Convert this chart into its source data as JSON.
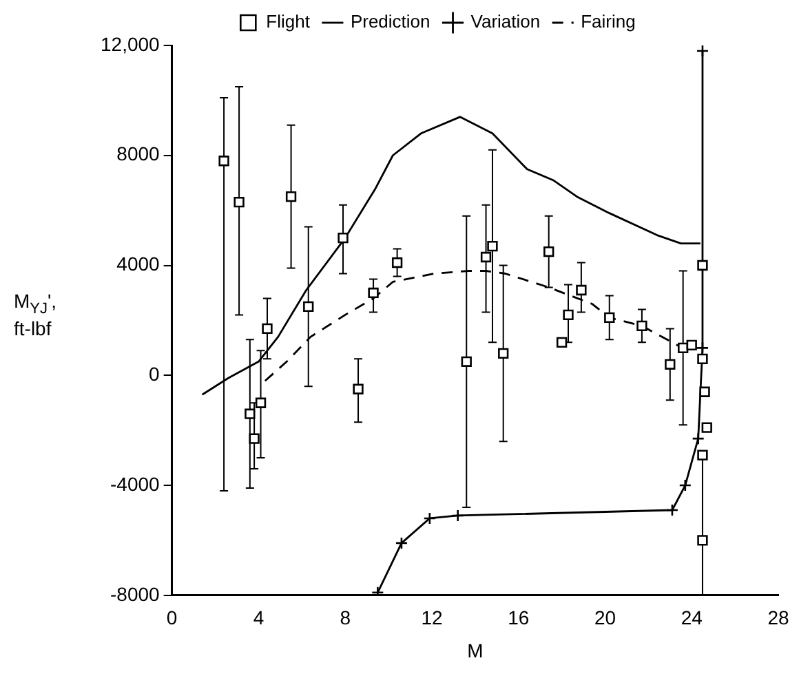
{
  "chart_data": {
    "type": "scatter",
    "xlabel": "M",
    "ylabel": "M$_{YJ}$', ft-lbf",
    "xlim": [
      0,
      28
    ],
    "ylim": [
      -8000,
      12000
    ],
    "xticks": [
      0,
      4,
      8,
      12,
      16,
      20,
      24,
      28
    ],
    "yticks": [
      -8000,
      -4000,
      0,
      4000,
      8000,
      {
        "value": 12000,
        "label": "12,000"
      }
    ],
    "grid": false,
    "legend": "top",
    "series": [
      {
        "name": "Flight",
        "type": "scatter",
        "marker": "square",
        "color": "#000000",
        "x": [
          2.4,
          3.1,
          5.5,
          7.9,
          6.3,
          4.4,
          3.6,
          4.1,
          3.8,
          8.6,
          9.3,
          10.4,
          13.6,
          14.5,
          14.8,
          15.3,
          17.4,
          18.0,
          18.3,
          18.9,
          20.2,
          21.7,
          23.0,
          23.6,
          24.0,
          24.5,
          24.5,
          24.6,
          24.7,
          24.5,
          24.5
        ],
        "values": [
          7800,
          6300,
          6500,
          5000,
          2500,
          1700,
          -1400,
          -1000,
          -2300,
          -500,
          3000,
          4100,
          500,
          4300,
          4700,
          800,
          4500,
          1200,
          2200,
          3100,
          2100,
          1800,
          400,
          1000,
          1100,
          4000,
          600,
          -600,
          -1900,
          -2900,
          -6000
        ],
        "errors": [
          [
            -4200,
            10100
          ],
          [
            2200,
            10500
          ],
          [
            3900,
            9100
          ],
          [
            3700,
            6200
          ],
          [
            -400,
            5400
          ],
          [
            600,
            2800
          ],
          [
            -4100,
            1300
          ],
          [
            -3000,
            900
          ],
          [
            -3400,
            -1000
          ],
          [
            -1700,
            600
          ],
          [
            2300,
            3500
          ],
          [
            3600,
            4600
          ],
          [
            -4800,
            5800
          ],
          [
            2300,
            6200
          ],
          [
            1200,
            8200
          ],
          [
            -2400,
            4000
          ],
          [
            3200,
            5800
          ],
          null,
          [
            1200,
            3300
          ],
          [
            2300,
            4100
          ],
          [
            1300,
            2900
          ],
          [
            1200,
            2400
          ],
          [
            -900,
            1700
          ],
          [
            -1800,
            3800
          ],
          null,
          null,
          null,
          null,
          null,
          null,
          [
            -8000,
            -3000
          ]
        ]
      },
      {
        "name": "Prediction",
        "type": "line",
        "marker": "none",
        "line_style": "solid",
        "color": "#000000",
        "x": [
          1.4,
          2.6,
          4.0,
          4.9,
          6.2,
          8.0,
          9.4,
          10.2,
          11.5,
          13.3,
          14.8,
          16.4,
          17.6,
          18.7,
          20.2,
          22.4,
          23.5,
          24.4
        ],
        "values": [
          -700,
          -100,
          500,
          1400,
          3100,
          5000,
          6800,
          8000,
          8800,
          9400,
          8800,
          7500,
          7100,
          6500,
          5900,
          5100,
          4800,
          4800
        ]
      },
      {
        "name": "Variation",
        "type": "line",
        "marker": "cross",
        "line_style": "solid",
        "color": "#000000",
        "x": [
          9.5,
          10.6,
          11.9,
          13.2,
          23.1,
          23.7,
          24.3,
          24.5,
          24.5
        ],
        "values": [
          -7900,
          -6100,
          -5200,
          -5100,
          -4900,
          -4000,
          -2300,
          1000,
          11800
        ]
      },
      {
        "name": "Fairing",
        "type": "line",
        "marker": "none",
        "line_style": "dashed",
        "color": "#000000",
        "x": [
          4.3,
          5.3,
          6.4,
          8.0,
          9.3,
          10.2,
          12.1,
          13.7,
          14.5,
          15.4,
          17.4,
          19.4,
          20.2,
          21.7,
          23.1,
          24.0
        ],
        "values": [
          -200,
          500,
          1400,
          2200,
          2800,
          3400,
          3700,
          3800,
          3800,
          3700,
          3200,
          2600,
          2100,
          1800,
          1200,
          800
        ]
      }
    ]
  }
}
